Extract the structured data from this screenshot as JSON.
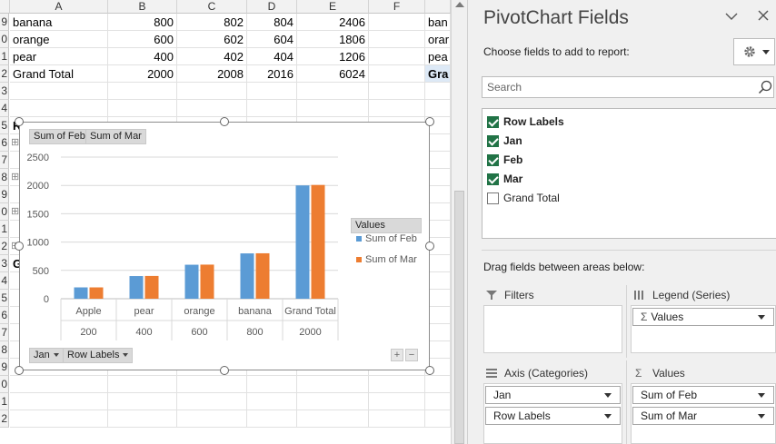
{
  "sheet": {
    "columns": [
      "A",
      "B",
      "C",
      "D",
      "E",
      "F"
    ],
    "row_numbers": [
      "9",
      "0",
      "1",
      "2",
      "3",
      "4",
      "5",
      "6",
      "7",
      "8",
      "9",
      "0",
      "1",
      "2",
      "3",
      "4",
      "5",
      "6",
      "7",
      "8",
      "9",
      "0",
      "1",
      "2"
    ],
    "rows": [
      {
        "label": "banana",
        "b": "800",
        "c": "802",
        "d": "804",
        "e": "2406"
      },
      {
        "label": "orange",
        "b": "600",
        "c": "602",
        "d": "604",
        "e": "1806"
      },
      {
        "label": "pear",
        "b": "400",
        "c": "402",
        "d": "404",
        "e": "1206"
      },
      {
        "label": "Grand Total",
        "b": "2000",
        "c": "2008",
        "d": "2016",
        "e": "6024"
      }
    ],
    "right_cells": [
      "ban",
      "orar",
      "pea",
      "Gra"
    ],
    "partial_row_labels": [
      "R",
      "",
      "",
      "",
      "",
      "",
      "",
      "",
      "G"
    ],
    "expand_glyphs": "⊞"
  },
  "chart": {
    "legend_buttons": [
      "Sum of Feb",
      "Sum of Mar"
    ],
    "axis_buttons": [
      "Jan",
      "Row Labels"
    ],
    "legend_title": "Values",
    "zoom_buttons": [
      "+",
      "−"
    ],
    "colors": {
      "feb": "#5b9bd5",
      "mar": "#ed7d31",
      "grid": "#d9d9d9"
    },
    "chart_data": {
      "type": "bar",
      "categories": [
        "Apple",
        "pear",
        "orange",
        "banana",
        "Grand Total"
      ],
      "outer_categories": [
        "200",
        "400",
        "600",
        "800",
        "2000"
      ],
      "series": [
        {
          "name": "Sum of Feb",
          "values": [
            200,
            400,
            600,
            800,
            2000
          ]
        },
        {
          "name": "Sum of Mar",
          "values": [
            200,
            402,
            602,
            802,
            2008
          ]
        }
      ],
      "y_ticks": [
        "0",
        "500",
        "1000",
        "1500",
        "2000",
        "2500"
      ],
      "ylim": [
        0,
        2500
      ],
      "grid": true,
      "legend_position": "right"
    }
  },
  "pane": {
    "title": "PivotChart Fields",
    "choose_label": "Choose fields to add to report:",
    "search_placeholder": "Search",
    "fields": [
      {
        "label": "Row Labels",
        "checked": true,
        "bold": true
      },
      {
        "label": "Jan",
        "checked": true,
        "bold": true
      },
      {
        "label": "Feb",
        "checked": true,
        "bold": true
      },
      {
        "label": "Mar",
        "checked": true,
        "bold": true
      },
      {
        "label": "Grand Total",
        "checked": false,
        "bold": false
      }
    ],
    "drag_label": "Drag fields between areas below:",
    "areas": {
      "filters": {
        "title": "Filters"
      },
      "legend": {
        "title": "Legend (Series)",
        "items": [
          "Values"
        ]
      },
      "axis": {
        "title": "Axis (Categories)",
        "items": [
          "Jan",
          "Row Labels"
        ]
      },
      "values": {
        "title": "Values",
        "items": [
          "Sum of Feb",
          "Sum of Mar"
        ]
      }
    }
  }
}
